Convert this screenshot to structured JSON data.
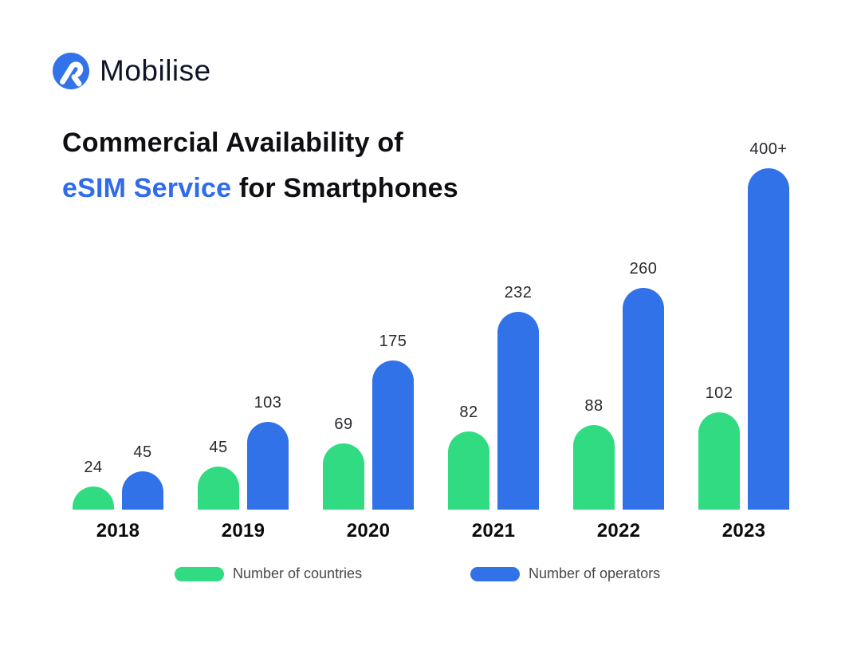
{
  "brand": {
    "name": "Mobilise",
    "logo_icon": "mobilise-logo-icon",
    "logo_color": "#3273e9"
  },
  "title": {
    "line1": "Commercial Availability of",
    "line2_accent": "eSIM Service",
    "line2_rest": " for Smartphones",
    "accent_color": "#2f6bea"
  },
  "colors": {
    "green": "#30db82",
    "blue": "#3172e9",
    "text_dark": "#0e0f13"
  },
  "chart_data": {
    "type": "bar",
    "title": "Commercial Availability of eSIM Service for Smartphones",
    "categories": [
      "2018",
      "2019",
      "2020",
      "2021",
      "2022",
      "2023"
    ],
    "series": [
      {
        "name": "Number of countries",
        "color": "#30db82",
        "values": [
          24,
          45,
          69,
          82,
          88,
          102
        ],
        "labels": [
          "24",
          "45",
          "69",
          "82",
          "88",
          "102"
        ]
      },
      {
        "name": "Number of operators",
        "color": "#3172e9",
        "values": [
          45,
          103,
          175,
          232,
          260,
          400
        ],
        "labels": [
          "45",
          "103",
          "175",
          "232",
          "260",
          "400+"
        ]
      }
    ],
    "xlabel": "",
    "ylabel": "",
    "ylim": [
      0,
      440
    ],
    "grid": false,
    "axes_shown": false,
    "value_labels_shown": true,
    "legend_position": "bottom"
  },
  "legend": {
    "items": [
      {
        "label": "Number of countries",
        "color": "#30db82"
      },
      {
        "label": "Number of operators",
        "color": "#3172e9"
      }
    ]
  }
}
